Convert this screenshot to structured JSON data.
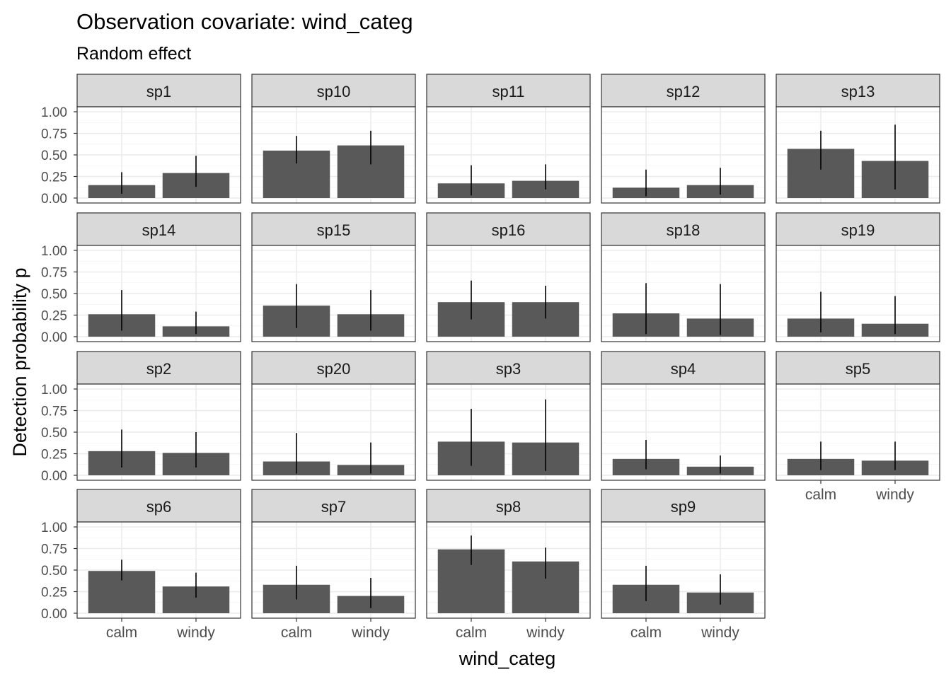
{
  "chart_data": {
    "type": "bar",
    "title": "Observation covariate: wind_categ",
    "subtitle": "Random effect",
    "xlabel": "wind_categ",
    "ylabel": "Detection probability p",
    "categories": [
      "calm",
      "windy"
    ],
    "y_ticks": [
      "0.00",
      "0.25",
      "0.50",
      "0.75",
      "1.00"
    ],
    "ylim": [
      0,
      1.0
    ],
    "grid": true,
    "bar_color": "#595959",
    "strip_color": "#d9d9d9",
    "panels": [
      {
        "label": "sp1",
        "values": [
          0.15,
          0.29
        ],
        "lower": [
          0.05,
          0.13
        ],
        "upper": [
          0.3,
          0.49
        ]
      },
      {
        "label": "sp10",
        "values": [
          0.55,
          0.61
        ],
        "lower": [
          0.4,
          0.39
        ],
        "upper": [
          0.72,
          0.78
        ]
      },
      {
        "label": "sp11",
        "values": [
          0.17,
          0.2
        ],
        "lower": [
          0.03,
          0.1
        ],
        "upper": [
          0.38,
          0.39
        ]
      },
      {
        "label": "sp12",
        "values": [
          0.12,
          0.15
        ],
        "lower": [
          0.02,
          0.04
        ],
        "upper": [
          0.33,
          0.35
        ]
      },
      {
        "label": "sp13",
        "values": [
          0.57,
          0.43
        ],
        "lower": [
          0.33,
          0.1
        ],
        "upper": [
          0.78,
          0.85
        ]
      },
      {
        "label": "sp14",
        "values": [
          0.26,
          0.12
        ],
        "lower": [
          0.07,
          0.03
        ],
        "upper": [
          0.54,
          0.29
        ]
      },
      {
        "label": "sp15",
        "values": [
          0.36,
          0.26
        ],
        "lower": [
          0.1,
          0.07
        ],
        "upper": [
          0.61,
          0.54
        ]
      },
      {
        "label": "sp16",
        "values": [
          0.4,
          0.4
        ],
        "lower": [
          0.2,
          0.21
        ],
        "upper": [
          0.65,
          0.59
        ]
      },
      {
        "label": "sp18",
        "values": [
          0.27,
          0.21
        ],
        "lower": [
          0.03,
          0.02
        ],
        "upper": [
          0.62,
          0.61
        ]
      },
      {
        "label": "sp19",
        "values": [
          0.21,
          0.15
        ],
        "lower": [
          0.05,
          0.03
        ],
        "upper": [
          0.52,
          0.47
        ]
      },
      {
        "label": "sp2",
        "values": [
          0.28,
          0.26
        ],
        "lower": [
          0.09,
          0.09
        ],
        "upper": [
          0.53,
          0.5
        ]
      },
      {
        "label": "sp20",
        "values": [
          0.16,
          0.12
        ],
        "lower": [
          0.02,
          0.02
        ],
        "upper": [
          0.49,
          0.38
        ]
      },
      {
        "label": "sp3",
        "values": [
          0.39,
          0.38
        ],
        "lower": [
          0.11,
          0.05
        ],
        "upper": [
          0.77,
          0.88
        ]
      },
      {
        "label": "sp4",
        "values": [
          0.19,
          0.1
        ],
        "lower": [
          0.07,
          0.02
        ],
        "upper": [
          0.41,
          0.23
        ]
      },
      {
        "label": "sp5",
        "values": [
          0.19,
          0.17
        ],
        "lower": [
          0.06,
          0.06
        ],
        "upper": [
          0.39,
          0.39
        ]
      },
      {
        "label": "sp6",
        "values": [
          0.49,
          0.31
        ],
        "lower": [
          0.38,
          0.18
        ],
        "upper": [
          0.62,
          0.47
        ]
      },
      {
        "label": "sp7",
        "values": [
          0.33,
          0.2
        ],
        "lower": [
          0.16,
          0.06
        ],
        "upper": [
          0.55,
          0.41
        ]
      },
      {
        "label": "sp8",
        "values": [
          0.74,
          0.6
        ],
        "lower": [
          0.56,
          0.4
        ],
        "upper": [
          0.9,
          0.76
        ]
      },
      {
        "label": "sp9",
        "values": [
          0.33,
          0.24
        ],
        "lower": [
          0.14,
          0.1
        ],
        "upper": [
          0.55,
          0.45
        ]
      }
    ]
  }
}
